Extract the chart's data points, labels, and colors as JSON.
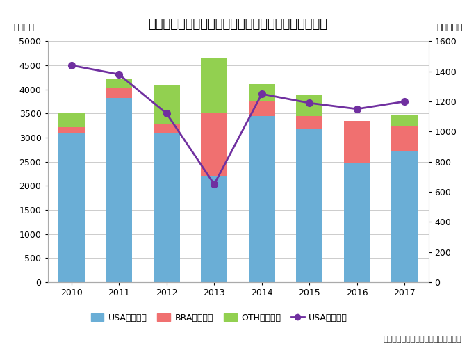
{
  "years": [
    2010,
    2011,
    2012,
    2013,
    2014,
    2015,
    2016,
    2017
  ],
  "usa_value": [
    3100,
    3820,
    3080,
    2200,
    3450,
    3170,
    2470,
    2720
  ],
  "bra_value": [
    120,
    200,
    200,
    1300,
    320,
    280,
    870,
    530
  ],
  "oth_value": [
    300,
    200,
    820,
    1150,
    340,
    450,
    0,
    230
  ],
  "usa_weight": [
    1440,
    1380,
    1120,
    650,
    1250,
    1190,
    1150,
    1200
  ],
  "bar_color_usa": "#6aaed6",
  "bar_color_bra": "#f07070",
  "bar_color_oth": "#92d050",
  "line_color": "#7030a0",
  "title": "トウモロコシの国別輸入金額とアメリカからの輸入量",
  "ylabel_left": "（億円）",
  "ylabel_right": "（万トン）",
  "ylim_left": [
    0,
    5000
  ],
  "ylim_right": [
    0,
    1600
  ],
  "legend_labels": [
    "USA（金額）",
    "BRA（金額）",
    "OTH（金額）",
    "USA（重量）"
  ],
  "source_text": "農林水産省・品目別輸入実績より作成",
  "yticks_left": [
    0,
    500,
    1000,
    1500,
    2000,
    2500,
    3000,
    3500,
    4000,
    4500,
    5000
  ],
  "yticks_right": [
    0,
    200,
    400,
    600,
    800,
    1000,
    1200,
    1400,
    1600
  ],
  "background_color": "#ffffff",
  "grid_color": "#cccccc",
  "title_fontsize": 13,
  "axis_label_fontsize": 9,
  "tick_fontsize": 9,
  "legend_fontsize": 9,
  "source_fontsize": 8
}
